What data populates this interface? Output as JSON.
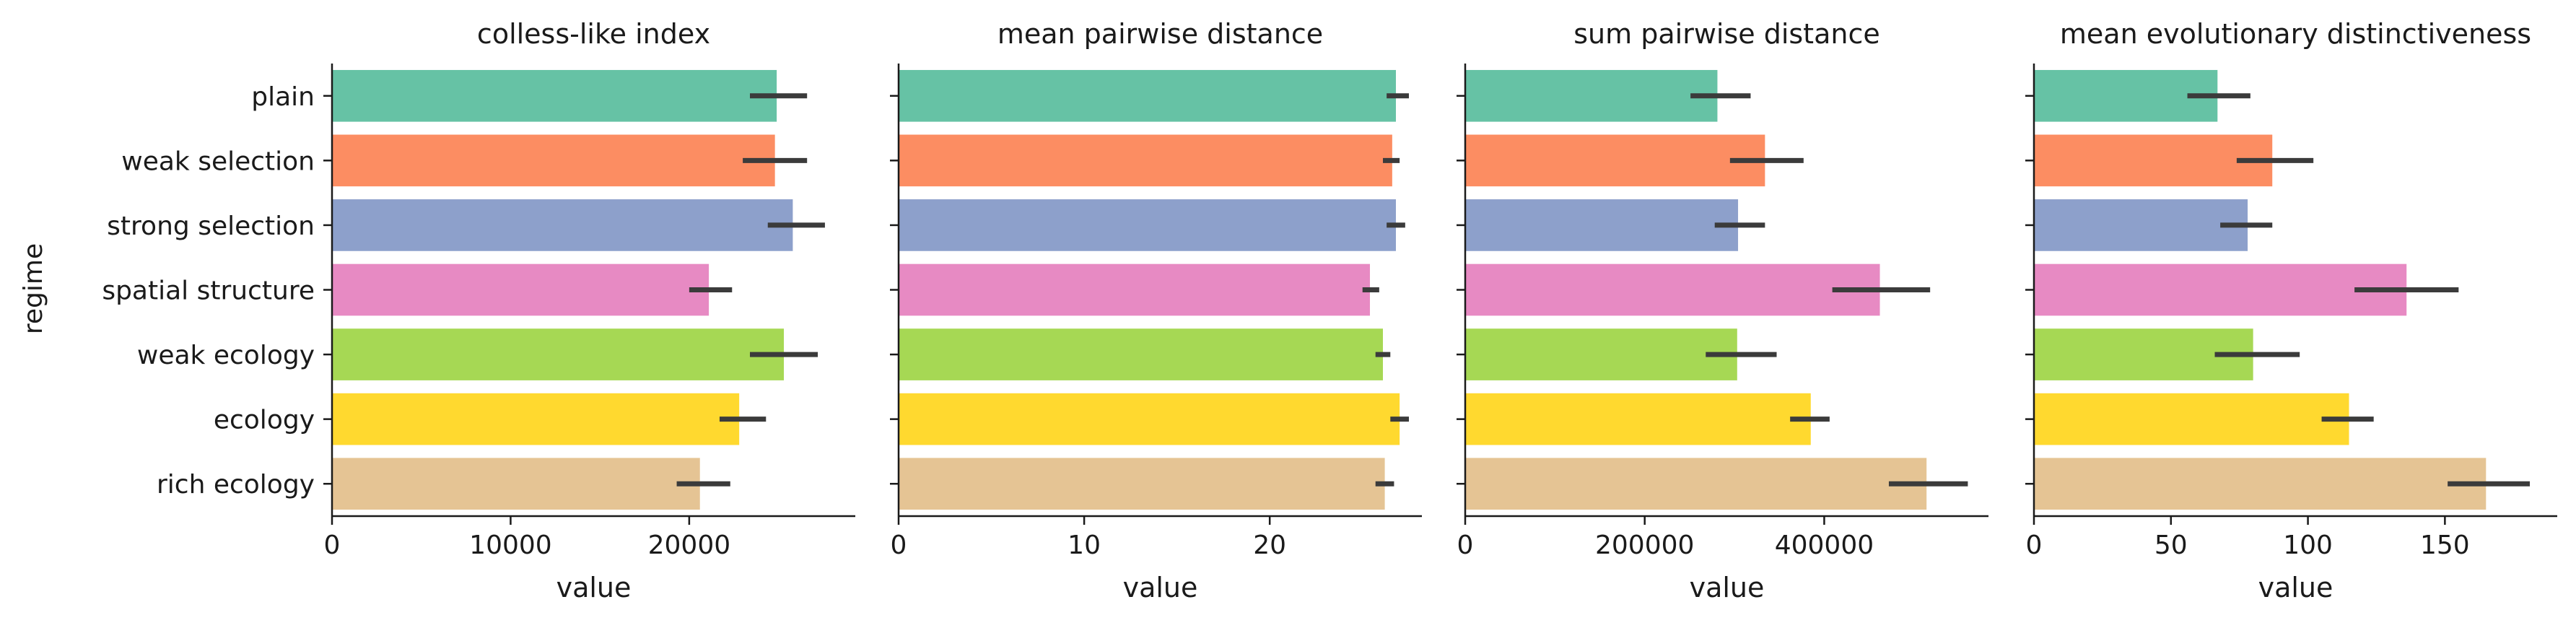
{
  "chart_data": {
    "type": "bar",
    "orientation": "horizontal",
    "y_label": "regime",
    "categories": [
      "plain",
      "weak selection",
      "strong selection",
      "spatial structure",
      "weak ecology",
      "ecology",
      "rich ecology"
    ],
    "colors": [
      "#66c2a5",
      "#fc8d62",
      "#8da0cb",
      "#e78ac3",
      "#a6d854",
      "#ffd92f",
      "#e5c494"
    ],
    "error_bar_color": "#3b3b3b",
    "panels": [
      {
        "title": "colless-like index",
        "xlabel": "value",
        "xlim": [
          0,
          29300
        ],
        "xticks": [
          0,
          10000,
          20000
        ],
        "tick_labels": [
          "0",
          "10000",
          "20000"
        ],
        "values": [
          24900,
          24800,
          25800,
          21100,
          25300,
          22800,
          20600
        ],
        "ci": [
          [
            23400,
            26600
          ],
          [
            23000,
            26600
          ],
          [
            24400,
            27600
          ],
          [
            20000,
            22400
          ],
          [
            23400,
            27200
          ],
          [
            21700,
            24300
          ],
          [
            19300,
            22300
          ]
        ]
      },
      {
        "title": "mean pairwise distance",
        "xlabel": "value",
        "xlim": [
          0,
          28.2
        ],
        "xticks": [
          0,
          10,
          20
        ],
        "tick_labels": [
          "0",
          "10",
          "20"
        ],
        "values": [
          26.8,
          26.6,
          26.8,
          25.4,
          26.1,
          27.0,
          26.2
        ],
        "ci": [
          [
            26.3,
            27.5
          ],
          [
            26.1,
            27.0
          ],
          [
            26.3,
            27.3
          ],
          [
            25.0,
            25.9
          ],
          [
            25.7,
            26.5
          ],
          [
            26.5,
            27.5
          ],
          [
            25.7,
            26.7
          ]
        ]
      },
      {
        "title": "sum pairwise distance",
        "xlabel": "value",
        "xlim": [
          0,
          583000
        ],
        "xticks": [
          0,
          200000,
          400000
        ],
        "tick_labels": [
          "0",
          "200000",
          "400000"
        ],
        "values": [
          281000,
          334000,
          304000,
          462000,
          303000,
          385000,
          514000
        ],
        "ci": [
          [
            251000,
            318000
          ],
          [
            295000,
            377000
          ],
          [
            278000,
            334000
          ],
          [
            409000,
            518000
          ],
          [
            268000,
            347000
          ],
          [
            362000,
            406000
          ],
          [
            472000,
            560000
          ]
        ]
      },
      {
        "title": "mean evolutionary distinctiveness",
        "xlabel": "value",
        "xlim": [
          0,
          191
        ],
        "xticks": [
          0,
          50,
          100,
          150
        ],
        "tick_labels": [
          "0",
          "50",
          "100",
          "150"
        ],
        "values": [
          67,
          87,
          78,
          136,
          80,
          115,
          165
        ],
        "ci": [
          [
            56,
            79
          ],
          [
            74,
            102
          ],
          [
            68,
            87
          ],
          [
            117,
            155
          ],
          [
            66,
            97
          ],
          [
            105,
            124
          ],
          [
            151,
            181
          ]
        ]
      }
    ]
  }
}
